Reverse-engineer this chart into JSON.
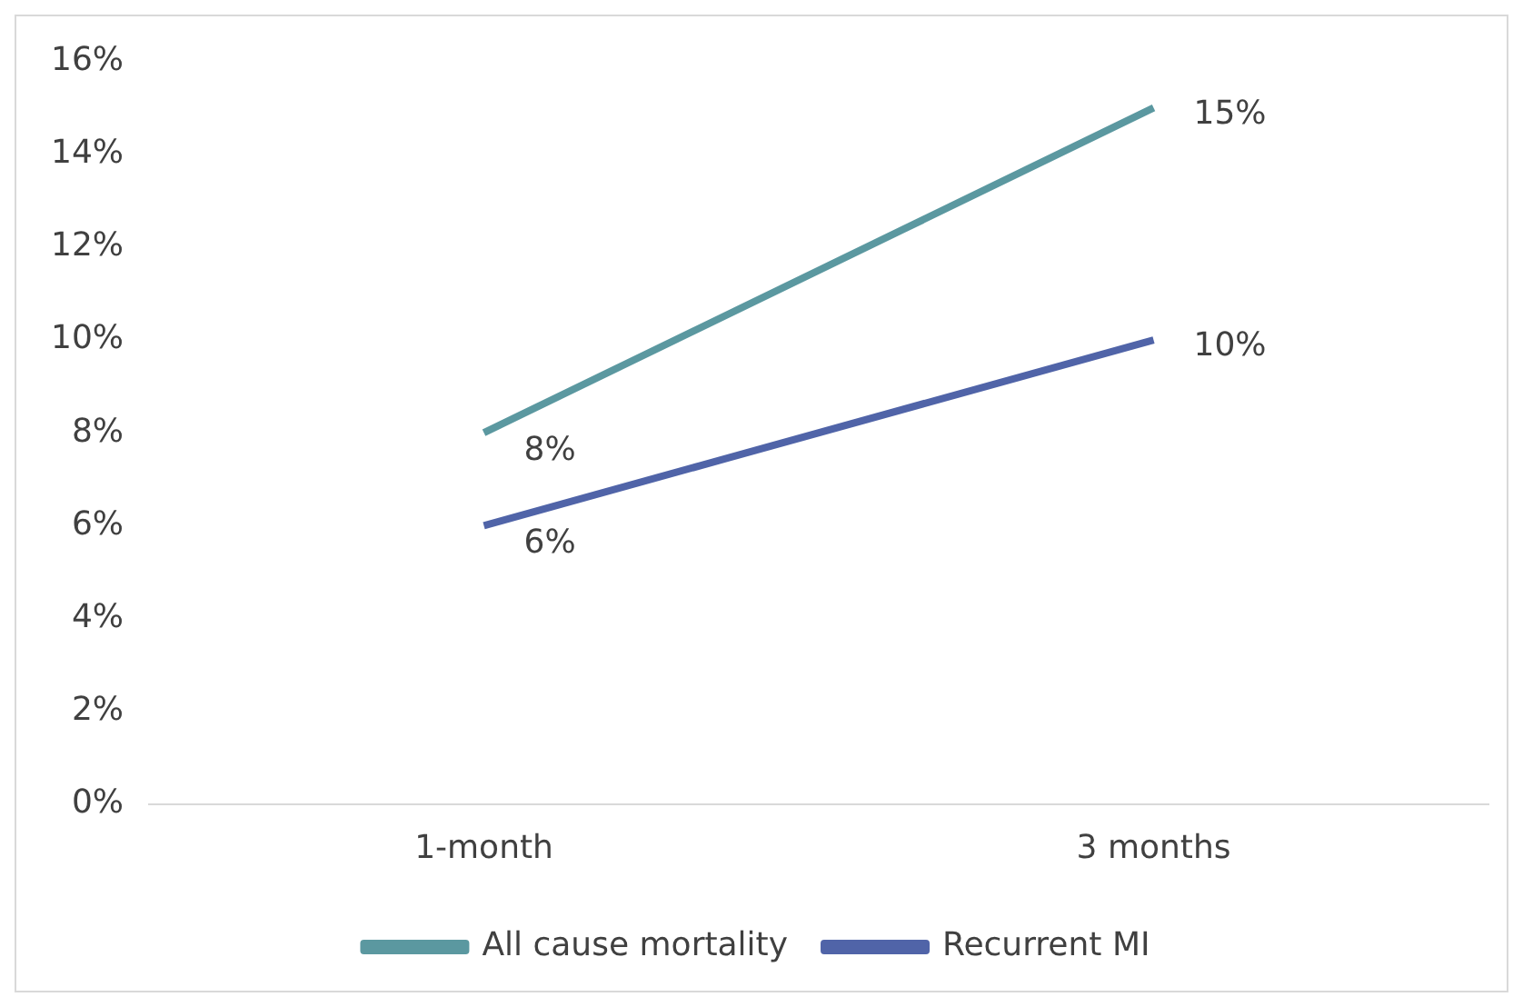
{
  "chart_data": {
    "type": "line",
    "categories": [
      "1-month",
      "3 months"
    ],
    "series": [
      {
        "name": "All cause mortality",
        "color": "#5b98a0",
        "values": [
          8,
          15
        ],
        "value_labels": [
          "8%",
          "15%"
        ]
      },
      {
        "name": "Recurrent MI",
        "color": "#5064a8",
        "values": [
          6,
          10
        ],
        "value_labels": [
          "6%",
          "10%"
        ]
      }
    ],
    "ylim": [
      0,
      16
    ],
    "yticks": [
      {
        "value": 0,
        "label": "0%"
      },
      {
        "value": 2,
        "label": "2%"
      },
      {
        "value": 4,
        "label": "4%"
      },
      {
        "value": 6,
        "label": "6%"
      },
      {
        "value": 8,
        "label": "8%"
      },
      {
        "value": 10,
        "label": "10%"
      },
      {
        "value": 12,
        "label": "12%"
      },
      {
        "value": 14,
        "label": "14%"
      },
      {
        "value": 16,
        "label": "16%"
      }
    ],
    "grid": false,
    "legend": "bottom",
    "marker": "none",
    "line_style": "solid"
  }
}
